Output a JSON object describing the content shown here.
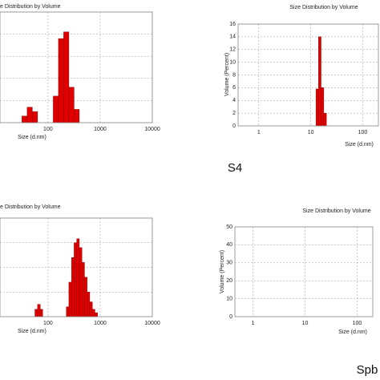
{
  "chart_data": [
    {
      "type": "histogram",
      "title": "e Distribution by Volume",
      "x_label": "Size (d.nm)",
      "xscale": "log",
      "xlim": [
        12,
        10000
      ],
      "xticks": [
        100,
        1000,
        10000
      ],
      "ylim": [
        0,
        25
      ],
      "yticks": [
        0,
        5,
        10,
        15,
        20,
        25
      ],
      "show_ytick_labels": false,
      "grid": true,
      "color": "#e00000",
      "bins": [
        31.6,
        39.8,
        50.1,
        63.1,
        79.4,
        100,
        125.9,
        158.5,
        199.5,
        251.2,
        316.2,
        398.1
      ],
      "values": [
        1.5,
        3.5,
        2.5,
        0,
        0,
        0,
        6,
        19,
        20.5,
        8,
        3
      ]
    },
    {
      "type": "histogram",
      "title": "Size Distribution by Volume",
      "x_label": "Size (d.nm)",
      "y_label": "Volume (Percent)",
      "xscale": "log",
      "xlim": [
        0.4,
        200
      ],
      "xticks": [
        1,
        10,
        100
      ],
      "ylim": [
        0,
        16
      ],
      "yticks": [
        0,
        2,
        4,
        6,
        8,
        10,
        12,
        14,
        16
      ],
      "show_ytick_labels": true,
      "grid": true,
      "color": "#e00000",
      "bins": [
        12.6,
        14.1,
        15.8,
        17.8,
        20
      ],
      "values": [
        5.8,
        14,
        6,
        2
      ],
      "caption": "S4"
    },
    {
      "type": "histogram",
      "title": "e Distribution by Volume",
      "x_label": "Size (d.nm)",
      "xscale": "log",
      "xlim": [
        12,
        10000
      ],
      "xticks": [
        100,
        1000,
        10000
      ],
      "ylim": [
        0,
        20
      ],
      "yticks": [
        0,
        5,
        10,
        15,
        20
      ],
      "show_ytick_labels": false,
      "grid": true,
      "color": "#e00000",
      "bins": [
        56,
        63,
        71,
        79,
        89,
        100,
        112,
        126,
        141,
        158,
        178,
        200,
        224,
        251,
        282,
        316,
        355,
        398,
        447,
        501,
        562,
        631,
        708,
        794,
        891,
        1000
      ],
      "values": [
        1.5,
        2.5,
        1.5,
        0,
        0,
        0,
        0,
        0,
        0,
        0,
        0,
        0,
        2,
        7,
        12,
        15,
        15.8,
        14,
        11,
        8,
        5,
        3,
        1.5,
        0.8,
        0
      ]
    },
    {
      "type": "histogram",
      "title": "Size Distribution by Volume",
      "x_label": "Size (d.nm)",
      "y_label": "Volume (Percent)",
      "xscale": "log",
      "xlim": [
        0.45,
        200
      ],
      "xticks": [
        1,
        10,
        100
      ],
      "ylim": [
        0,
        50
      ],
      "yticks": [
        0,
        10,
        20,
        30,
        40,
        50
      ],
      "show_ytick_labels": true,
      "grid": true,
      "color": "#e00000",
      "caption": "Spb"
    }
  ]
}
